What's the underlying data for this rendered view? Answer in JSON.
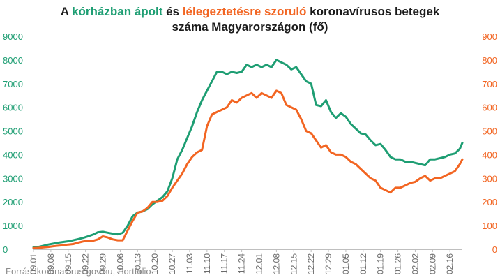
{
  "title": {
    "part1": "A ",
    "part2": "kórházban ápolt",
    "part3": " és ",
    "part4": "lélegeztetésre szoruló",
    "part5": " koronavírusos betegek",
    "line2": "száma Magyarországon  (fő)"
  },
  "source": "Forrás: koronavirus.gov.hu, Portfolio",
  "colors": {
    "hospitalized": "#1e9e73",
    "ventilated": "#f26522",
    "axis": "#bfbfbf"
  },
  "chart_data": {
    "type": "line",
    "title": "A kórházban ápolt és lélegeztetésre szoruló koronavírusos betegek száma Magyarországon  (fő)",
    "x_axis": {
      "start_date": "09.01",
      "end_date": "02.21",
      "tick_labels": [
        "09.01",
        "09.08",
        "09.15",
        "09.22",
        "09.29",
        "10.06",
        "10.13",
        "10.20",
        "10.27",
        "11.03",
        "11.10",
        "11.17",
        "11.24",
        "12.01",
        "12.08",
        "12.15",
        "12.22",
        "12.29",
        "01.05",
        "01.12",
        "01.19",
        "01.26",
        "02.02",
        "02.09",
        "02.16"
      ]
    },
    "y_left": {
      "ticks": [
        0,
        1000,
        2000,
        3000,
        4000,
        5000,
        6000,
        7000,
        8000,
        9000
      ],
      "ylim": [
        0,
        9000
      ]
    },
    "y_right": {
      "ticks": [
        0,
        100,
        200,
        300,
        400,
        500,
        600,
        700,
        800,
        900
      ],
      "ylim": [
        0,
        900
      ]
    },
    "grid": false,
    "series": [
      {
        "axis": "left",
        "x": [
          "09.01",
          "09.03",
          "09.05",
          "09.07",
          "09.09",
          "09.11",
          "09.13",
          "09.15",
          "09.17",
          "09.19",
          "09.21",
          "09.23",
          "09.25",
          "09.27",
          "09.29",
          "10.01",
          "10.03",
          "10.05",
          "10.07",
          "10.09",
          "10.11",
          "10.13",
          "10.15",
          "10.17",
          "10.19",
          "10.21",
          "10.23",
          "10.25",
          "10.27",
          "10.29",
          "10.31",
          "11.02",
          "11.04",
          "11.06",
          "11.08",
          "11.10",
          "11.12",
          "11.14",
          "11.16",
          "11.18",
          "11.20",
          "11.22",
          "11.24",
          "11.26",
          "11.28",
          "11.30",
          "12.02",
          "12.04",
          "12.06",
          "12.08",
          "12.10",
          "12.12",
          "12.14",
          "12.16",
          "12.18",
          "12.20",
          "12.22",
          "12.24",
          "12.26",
          "12.28",
          "12.30",
          "01.01",
          "01.03",
          "01.05",
          "01.07",
          "01.09",
          "01.11",
          "01.13",
          "01.15",
          "01.17",
          "01.19",
          "01.21",
          "01.23",
          "01.25",
          "01.27",
          "01.29",
          "01.31",
          "02.02",
          "02.04",
          "02.06",
          "02.08",
          "02.10",
          "02.12",
          "02.14",
          "02.16",
          "02.18",
          "02.20",
          "02.21"
        ],
        "values": [
          80,
          100,
          150,
          200,
          240,
          280,
          310,
          340,
          380,
          430,
          480,
          550,
          620,
          720,
          740,
          700,
          660,
          630,
          700,
          1000,
          1400,
          1550,
          1600,
          1700,
          1900,
          2050,
          2200,
          2450,
          3000,
          3800,
          4200,
          4700,
          5200,
          5800,
          6300,
          6700,
          7100,
          7500,
          7500,
          7400,
          7500,
          7450,
          7500,
          7800,
          7700,
          7800,
          7700,
          7800,
          7700,
          8000,
          7900,
          7800,
          7600,
          7700,
          7400,
          7100,
          7000,
          6100,
          6050,
          6300,
          5800,
          5550,
          5750,
          5600,
          5300,
          5100,
          4900,
          4850,
          4600,
          4400,
          4450,
          4200,
          3900,
          3800,
          3800,
          3700,
          3700,
          3650,
          3600,
          3550,
          3800,
          3800,
          3850,
          3900,
          4000,
          4050,
          4250,
          4500
        ]
      },
      {
        "axis": "right",
        "x": [
          "09.01",
          "09.03",
          "09.05",
          "09.07",
          "09.09",
          "09.11",
          "09.13",
          "09.15",
          "09.17",
          "09.19",
          "09.21",
          "09.23",
          "09.25",
          "09.27",
          "09.29",
          "10.01",
          "10.03",
          "10.05",
          "10.07",
          "10.09",
          "10.11",
          "10.13",
          "10.15",
          "10.17",
          "10.19",
          "10.21",
          "10.23",
          "10.25",
          "10.27",
          "10.29",
          "10.31",
          "11.02",
          "11.04",
          "11.06",
          "11.08",
          "11.10",
          "11.12",
          "11.14",
          "11.16",
          "11.18",
          "11.20",
          "11.22",
          "11.24",
          "11.26",
          "11.28",
          "11.30",
          "12.02",
          "12.04",
          "12.06",
          "12.08",
          "12.10",
          "12.12",
          "12.14",
          "12.16",
          "12.18",
          "12.20",
          "12.22",
          "12.24",
          "12.26",
          "12.28",
          "12.30",
          "01.01",
          "01.03",
          "01.05",
          "01.07",
          "01.09",
          "01.11",
          "01.13",
          "01.15",
          "01.17",
          "01.19",
          "01.21",
          "01.23",
          "01.25",
          "01.27",
          "01.29",
          "01.31",
          "02.02",
          "02.04",
          "02.06",
          "02.08",
          "02.10",
          "02.12",
          "02.14",
          "02.16",
          "02.18",
          "02.20",
          "02.21"
        ],
        "values": [
          5,
          6,
          8,
          10,
          13,
          15,
          17,
          20,
          22,
          28,
          33,
          37,
          36,
          42,
          55,
          50,
          42,
          38,
          38,
          80,
          120,
          155,
          160,
          175,
          200,
          200,
          205,
          225,
          260,
          290,
          320,
          360,
          390,
          410,
          420,
          520,
          570,
          580,
          590,
          600,
          630,
          620,
          640,
          650,
          660,
          640,
          660,
          650,
          640,
          670,
          660,
          610,
          600,
          590,
          550,
          500,
          490,
          460,
          430,
          440,
          410,
          400,
          400,
          390,
          370,
          360,
          340,
          320,
          300,
          290,
          260,
          250,
          240,
          260,
          260,
          270,
          280,
          285,
          300,
          310,
          290,
          300,
          300,
          310,
          320,
          330,
          360,
          380
        ]
      }
    ]
  }
}
